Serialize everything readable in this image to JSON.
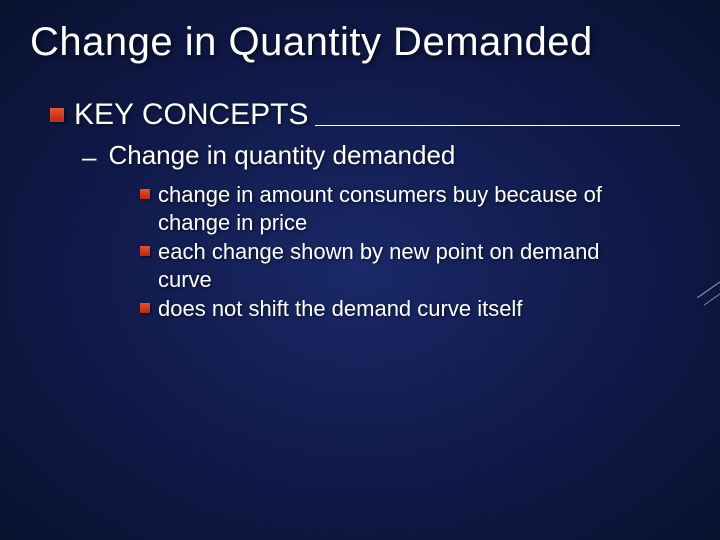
{
  "colors": {
    "background_center": "#1a2968",
    "background_mid": "#0f1845",
    "background_edge": "#0a1230",
    "text": "#ffffff",
    "bullet_top": "#e85030",
    "bullet_bottom": "#b82810",
    "underline": "#ffffff"
  },
  "typography": {
    "title_fontsize": 40,
    "heading_fontsize": 30,
    "sub_fontsize": 26,
    "detail_fontsize": 22,
    "font_family": "Arial"
  },
  "title": "Change in Quantity Demanded",
  "heading": "KEY CONCEPTS",
  "subheading": "Change in quantity demanded",
  "details": [
    "change in amount consumers buy because of change in price",
    "each change shown by new point on demand curve",
    "does not shift the demand curve itself"
  ]
}
